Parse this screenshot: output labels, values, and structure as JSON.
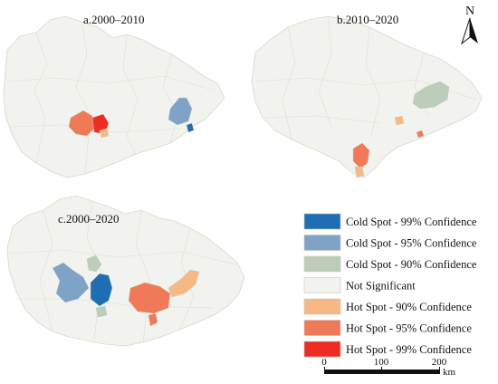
{
  "panels": [
    {
      "id": "a",
      "title": "a.2000–2010"
    },
    {
      "id": "b",
      "title": "b.2010–2020"
    },
    {
      "id": "c",
      "title": "c.2000–2020"
    }
  ],
  "north_label": "N",
  "legend": [
    {
      "label": "Cold Spot - 99% Confidence",
      "color": "#1f6eb3"
    },
    {
      "label": "Cold Spot - 95% Confidence",
      "color": "#7fa3c6"
    },
    {
      "label": "Cold Spot - 90% Confidence",
      "color": "#bccdb9"
    },
    {
      "label": "Not Significant",
      "color": "#f2f3ee"
    },
    {
      "label": "Hot Spot - 90% Confidence",
      "color": "#f6b986"
    },
    {
      "label": "Hot Spot - 95% Confidence",
      "color": "#f07a58"
    },
    {
      "label": "Hot Spot - 99% Confidence",
      "color": "#ee2c24"
    }
  ],
  "scale_bar": {
    "ticks": [
      "0",
      "100",
      "200"
    ],
    "unit": "km"
  }
}
